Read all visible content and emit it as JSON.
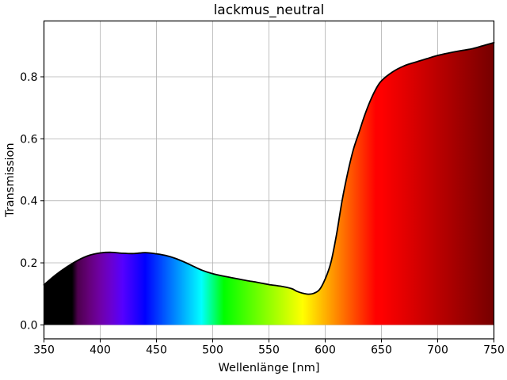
{
  "chart_data": {
    "type": "area",
    "title": "lackmus_neutral",
    "xlabel": "Wellenlänge [nm]",
    "ylabel": "Transmission",
    "xlim": [
      350,
      750
    ],
    "ylim": [
      -0.045,
      0.98
    ],
    "xticks": [
      350,
      400,
      450,
      500,
      550,
      600,
      650,
      700,
      750
    ],
    "xtick_labels": [
      "350",
      "400",
      "450",
      "500",
      "550",
      "600",
      "650",
      "700",
      "750"
    ],
    "yticks": [
      0.0,
      0.2,
      0.4,
      0.6,
      0.8
    ],
    "ytick_labels": [
      "0.0",
      "0.2",
      "0.4",
      "0.6",
      "0.8"
    ],
    "grid": true,
    "legend": false,
    "series": [
      {
        "name": "transmission",
        "x": [
          350,
          360,
          370,
          380,
          390,
          400,
          410,
          420,
          430,
          440,
          450,
          460,
          470,
          480,
          490,
          500,
          510,
          520,
          530,
          540,
          550,
          560,
          570,
          575,
          580,
          585,
          590,
          595,
          600,
          605,
          610,
          615,
          620,
          625,
          630,
          635,
          640,
          645,
          650,
          660,
          670,
          680,
          690,
          700,
          710,
          720,
          730,
          740,
          750
        ],
        "y": [
          0.129,
          0.16,
          0.186,
          0.208,
          0.224,
          0.232,
          0.234,
          0.231,
          0.23,
          0.233,
          0.229,
          0.222,
          0.21,
          0.194,
          0.177,
          0.165,
          0.157,
          0.15,
          0.143,
          0.137,
          0.13,
          0.125,
          0.117,
          0.108,
          0.102,
          0.099,
          0.102,
          0.114,
          0.148,
          0.2,
          0.29,
          0.4,
          0.49,
          0.565,
          0.62,
          0.675,
          0.722,
          0.76,
          0.787,
          0.816,
          0.835,
          0.847,
          0.858,
          0.869,
          0.877,
          0.884,
          0.89,
          0.9,
          0.91
        ],
        "line_color": "#000000",
        "fill": "visible-spectrum-gradient",
        "fill_baseline": 0.0
      }
    ],
    "spectrum_fill_stops": [
      {
        "nm": 350,
        "color": "#000000"
      },
      {
        "nm": 375,
        "color": "#000000"
      },
      {
        "nm": 380,
        "color": "#4d004d"
      },
      {
        "nm": 390,
        "color": "#650079"
      },
      {
        "nm": 400,
        "color": "#6f00a6"
      },
      {
        "nm": 410,
        "color": "#6900d2"
      },
      {
        "nm": 420,
        "color": "#5500ff"
      },
      {
        "nm": 430,
        "color": "#2b00ff"
      },
      {
        "nm": 440,
        "color": "#0000ff"
      },
      {
        "nm": 450,
        "color": "#0033ff"
      },
      {
        "nm": 460,
        "color": "#0066ff"
      },
      {
        "nm": 470,
        "color": "#0099ff"
      },
      {
        "nm": 480,
        "color": "#00ccff"
      },
      {
        "nm": 490,
        "color": "#00ffff"
      },
      {
        "nm": 500,
        "color": "#00ff80"
      },
      {
        "nm": 510,
        "color": "#00ff00"
      },
      {
        "nm": 520,
        "color": "#24ff00"
      },
      {
        "nm": 530,
        "color": "#49ff00"
      },
      {
        "nm": 540,
        "color": "#6dff00"
      },
      {
        "nm": 550,
        "color": "#92ff00"
      },
      {
        "nm": 560,
        "color": "#b6ff00"
      },
      {
        "nm": 570,
        "color": "#dbff00"
      },
      {
        "nm": 580,
        "color": "#ffff00"
      },
      {
        "nm": 590,
        "color": "#ffd800"
      },
      {
        "nm": 600,
        "color": "#ffb100"
      },
      {
        "nm": 610,
        "color": "#ff8900"
      },
      {
        "nm": 620,
        "color": "#ff6200"
      },
      {
        "nm": 630,
        "color": "#ff3b00"
      },
      {
        "nm": 640,
        "color": "#ff1400"
      },
      {
        "nm": 645,
        "color": "#ff0000"
      },
      {
        "nm": 650,
        "color": "#ff0000"
      },
      {
        "nm": 660,
        "color": "#f10000"
      },
      {
        "nm": 670,
        "color": "#e40000"
      },
      {
        "nm": 680,
        "color": "#d60000"
      },
      {
        "nm": 690,
        "color": "#c80000"
      },
      {
        "nm": 700,
        "color": "#ba0000"
      },
      {
        "nm": 710,
        "color": "#ad0000"
      },
      {
        "nm": 720,
        "color": "#9f0000"
      },
      {
        "nm": 730,
        "color": "#910000"
      },
      {
        "nm": 740,
        "color": "#830000"
      },
      {
        "nm": 750,
        "color": "#760000"
      }
    ],
    "colors": {
      "line": "#000000",
      "grid": "#b0b0b0",
      "axes_frame": "#000000",
      "background": "#ffffff",
      "text": "#000000"
    }
  }
}
